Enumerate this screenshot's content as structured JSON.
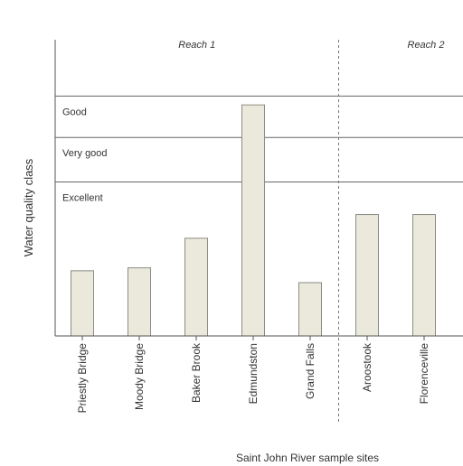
{
  "chart_data": {
    "type": "bar",
    "title": "",
    "xlabel": "Saint John River sample sites",
    "ylabel": "Water quality class",
    "categories": [
      "Priestly Bridge",
      "Moody Bridge",
      "Baker Brook",
      "Edmundston",
      "Grand Falls",
      "Aroostook",
      "Florenceville"
    ],
    "values": [
      0.22,
      0.23,
      0.33,
      0.78,
      0.18,
      0.41,
      0.41
    ],
    "value_scale": "relative position on the water quality class axis, 0 = bottom of axis, 1 = top of axis",
    "class_bands": [
      {
        "label": "Excellent",
        "upper": 0.52
      },
      {
        "label": "Very good",
        "upper": 0.67
      },
      {
        "label": "Good",
        "upper": 0.81
      }
    ],
    "reaches": [
      {
        "label": "Reach 1",
        "first": 0,
        "last": 4
      },
      {
        "label": "Reach 2",
        "first": 5,
        "last": 6
      }
    ],
    "grid": false,
    "legend": "none",
    "colors": {
      "bar_fill": "#eae9dc",
      "bar_stroke": "#8c8c84",
      "threshold_lines": "#666666",
      "reach_divider": "#777777",
      "axis": "#555555"
    }
  }
}
